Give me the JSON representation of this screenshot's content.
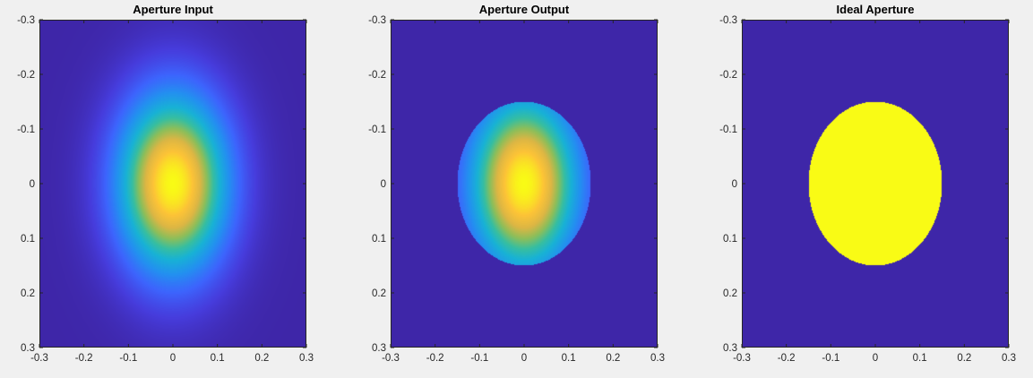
{
  "figure": {
    "background": "#f0f0f0"
  },
  "colormap": {
    "name": "parula",
    "low": "#3e26a8",
    "high": "#f9fb15"
  },
  "chart_data": [
    {
      "type": "heatmap",
      "title": "Aperture Input",
      "xlabel": "",
      "ylabel": "",
      "xlim": [
        -0.3,
        0.3
      ],
      "ylim": [
        -0.3,
        0.3
      ],
      "y_axis_direction": "top-to-bottom",
      "xticks": [
        "-0.3",
        "-0.2",
        "-0.1",
        "0",
        "0.1",
        "0.2",
        "0.3"
      ],
      "yticks": [
        "-0.3",
        "-0.2",
        "-0.1",
        "0",
        "0.1",
        "0.2",
        "0.3"
      ],
      "field": {
        "function": "gaussian",
        "center": [
          0,
          0
        ],
        "sigma_x": 0.087,
        "sigma_y": 0.115,
        "peak": 1.0
      },
      "grid": false
    },
    {
      "type": "heatmap",
      "title": "Aperture Output",
      "xlabel": "",
      "ylabel": "",
      "xlim": [
        -0.3,
        0.3
      ],
      "ylim": [
        -0.3,
        0.3
      ],
      "y_axis_direction": "top-to-bottom",
      "xticks": [
        "-0.3",
        "-0.2",
        "-0.1",
        "0",
        "0.1",
        "0.2",
        "0.3"
      ],
      "yticks": [
        "-0.3",
        "-0.2",
        "-0.1",
        "0",
        "0.1",
        "0.2",
        "0.3"
      ],
      "field": {
        "function": "gaussian-clipped",
        "center": [
          0,
          0
        ],
        "sigma_x": 0.087,
        "sigma_y": 0.115,
        "peak": 1.0,
        "aperture_semi_axes": [
          0.15,
          0.15
        ]
      },
      "grid": false
    },
    {
      "type": "heatmap",
      "title": "Ideal Aperture",
      "xlabel": "",
      "ylabel": "",
      "xlim": [
        -0.3,
        0.3
      ],
      "ylim": [
        -0.3,
        0.3
      ],
      "y_axis_direction": "top-to-bottom",
      "xticks": [
        "-0.3",
        "-0.2",
        "-0.1",
        "0",
        "0.1",
        "0.2",
        "0.3"
      ],
      "yticks": [
        "-0.3",
        "-0.2",
        "-0.1",
        "0",
        "0.1",
        "0.2",
        "0.3"
      ],
      "field": {
        "function": "binary-ellipse",
        "center": [
          0,
          0
        ],
        "aperture_semi_axes": [
          0.15,
          0.15
        ],
        "inside_value": 1.0,
        "outside_value": 0.0
      },
      "grid": false
    }
  ]
}
